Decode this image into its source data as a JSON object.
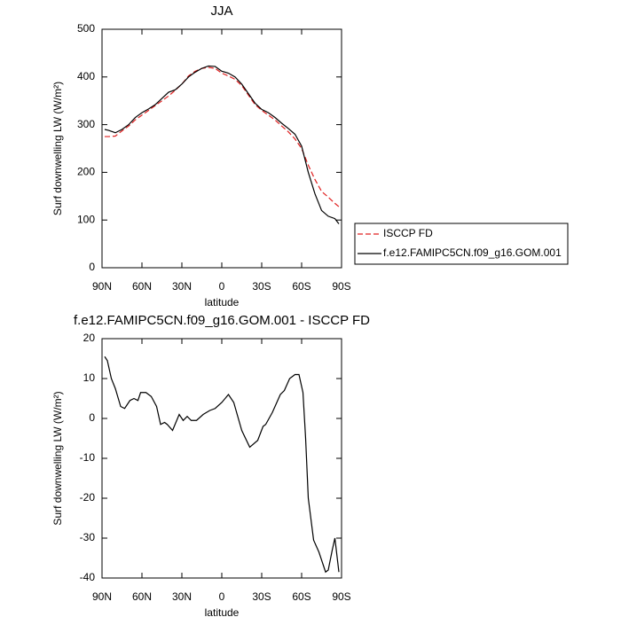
{
  "chart_data": [
    {
      "type": "line",
      "title": "JJA",
      "x_label": "latitude",
      "y_label": "Surf downwelling LW (W/m²)",
      "xlim": [
        90,
        -90
      ],
      "xticks": [
        {
          "value": 90,
          "label": "90N"
        },
        {
          "value": 60,
          "label": "60N"
        },
        {
          "value": 30,
          "label": "30N"
        },
        0,
        {
          "value": -30,
          "label": "30S"
        },
        {
          "value": -60,
          "label": "60S"
        },
        {
          "value": -90,
          "label": "90S"
        }
      ],
      "ylim": [
        0,
        500
      ],
      "yticks": [
        0,
        100,
        200,
        300,
        400,
        500
      ],
      "legend": true,
      "x": [
        88,
        85,
        80,
        75,
        70,
        65,
        60,
        55,
        50,
        45,
        40,
        35,
        30,
        25,
        20,
        15,
        10,
        5,
        0,
        -5,
        -10,
        -15,
        -20,
        -25,
        -30,
        -35,
        -40,
        -45,
        -50,
        -55,
        -60,
        -65,
        -70,
        -75,
        -80,
        -85,
        -88
      ],
      "series": [
        {
          "name": "ISCCP FD",
          "color": "#e02020",
          "dashed": true,
          "values": [
            275,
            275,
            276,
            287,
            297,
            310,
            320,
            330,
            340,
            350,
            360,
            372,
            385,
            402,
            412,
            418,
            420,
            418,
            408,
            402,
            395,
            382,
            362,
            342,
            330,
            320,
            310,
            297,
            285,
            270,
            250,
            215,
            185,
            160,
            148,
            135,
            128
          ]
        },
        {
          "name": "f.e12.FAMIPC5CN.f09_g16.GOM.001",
          "color": "#000000",
          "dashed": false,
          "values": [
            290,
            288,
            283,
            290,
            300,
            315,
            325,
            333,
            342,
            355,
            368,
            373,
            385,
            400,
            410,
            418,
            423,
            422,
            412,
            408,
            400,
            385,
            365,
            345,
            332,
            325,
            315,
            303,
            292,
            280,
            255,
            200,
            155,
            120,
            108,
            103,
            92
          ]
        }
      ]
    },
    {
      "type": "line",
      "title": "f.e12.FAMIPC5CN.f09_g16.GOM.001 - ISCCP FD",
      "x_label": "latitude",
      "y_label": "Surf downwelling LW (W/m²)",
      "xlim": [
        90,
        -90
      ],
      "xticks": [
        {
          "value": 90,
          "label": "90N"
        },
        {
          "value": 60,
          "label": "60N"
        },
        {
          "value": 30,
          "label": "30N"
        },
        0,
        {
          "value": -30,
          "label": "30S"
        },
        {
          "value": -60,
          "label": "60S"
        },
        {
          "value": -90,
          "label": "90S"
        }
      ],
      "ylim": [
        -40,
        20
      ],
      "yticks": [
        -40,
        -30,
        -20,
        -10,
        0,
        10,
        20
      ],
      "color": "#000000",
      "x": [
        88,
        86,
        83,
        80,
        76,
        73,
        69,
        66,
        63,
        61,
        57,
        53,
        49,
        46,
        43,
        41,
        37,
        32,
        29,
        26,
        23,
        19,
        14,
        9,
        5,
        0,
        -5,
        -9,
        -15,
        -21,
        -27,
        -31,
        -33,
        -38,
        -44,
        -47,
        -51,
        -55,
        -58,
        -61,
        -63,
        -65,
        -69,
        -73,
        -76,
        -78,
        -80,
        -83,
        -85,
        -88
      ],
      "values": [
        15.5,
        14.5,
        10,
        7.5,
        3,
        2.5,
        4.5,
        5,
        4.5,
        6.5,
        6.5,
        5.5,
        3,
        -1.5,
        -1,
        -1.5,
        -3,
        1,
        -0.5,
        0.5,
        -0.5,
        -0.5,
        1,
        2,
        2.5,
        4,
        6,
        4,
        -3,
        -7.2,
        -5.5,
        -2,
        -1.5,
        1.5,
        6,
        7,
        10,
        11,
        11,
        6.5,
        -5,
        -20,
        -30.5,
        -33.5,
        -36.5,
        -38.5,
        -38,
        -33,
        -30,
        -38.5
      ]
    }
  ]
}
